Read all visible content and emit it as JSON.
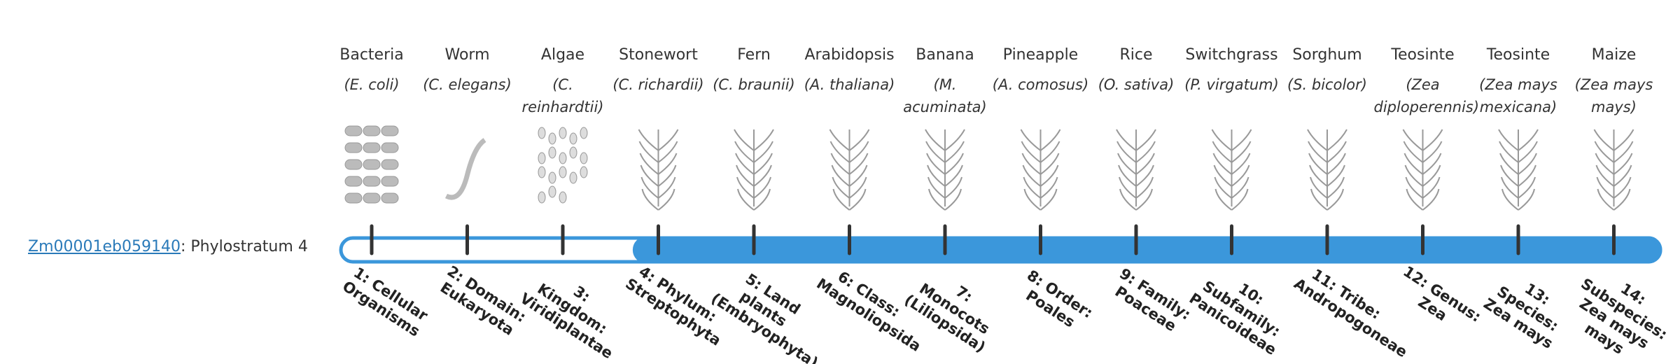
{
  "gene": {
    "id": "Zm00001eb059140",
    "phylostratum_label": "Phylostratum",
    "phylostratum": 4
  },
  "organisms": [
    {
      "name": "Bacteria",
      "species": "(E. coli)",
      "stratum": "1: Cellular Organisms"
    },
    {
      "name": "Worm",
      "species": "(C. elegans)",
      "stratum": "2: Domain: Eukaryota"
    },
    {
      "name": "Algae",
      "species": "(C. reinhardtii)",
      "stratum": "3: Kingdom: Viridiplantae"
    },
    {
      "name": "Stonewort",
      "species": "(C. richardii)",
      "stratum": "4: Phylum: Streptophyta"
    },
    {
      "name": "Fern",
      "species": "(C. braunii)",
      "stratum": "5: Land plants (Embryophyta)"
    },
    {
      "name": "Arabidopsis",
      "species": "(A. thaliana)",
      "stratum": "6: Class: Magnoliopsida"
    },
    {
      "name": "Banana",
      "species": "(M. acuminata)",
      "stratum": "7: Monocots (Liliopsida)"
    },
    {
      "name": "Pineapple",
      "species": "(A. comosus)",
      "stratum": "8: Order: Poales"
    },
    {
      "name": "Rice",
      "species": "(O. sativa)",
      "stratum": "9: Family: Poaceae"
    },
    {
      "name": "Switchgrass",
      "species": "(P. virgatum)",
      "stratum": "10: Subfamily: Panicoideae"
    },
    {
      "name": "Sorghum",
      "species": "(S. bicolor)",
      "stratum": "11: Tribe: Andropogoneae"
    },
    {
      "name": "Teosinte",
      "species": "(Zea diploperennis)",
      "stratum": "12: Genus: Zea"
    },
    {
      "name": "Teosinte",
      "species": "(Zea mays mexicana)",
      "stratum": "13: Species: Zea mays"
    },
    {
      "name": "Maize",
      "species": "(Zea mays mays)",
      "stratum": "14: Subspecies: Zea mays mays"
    }
  ]
}
